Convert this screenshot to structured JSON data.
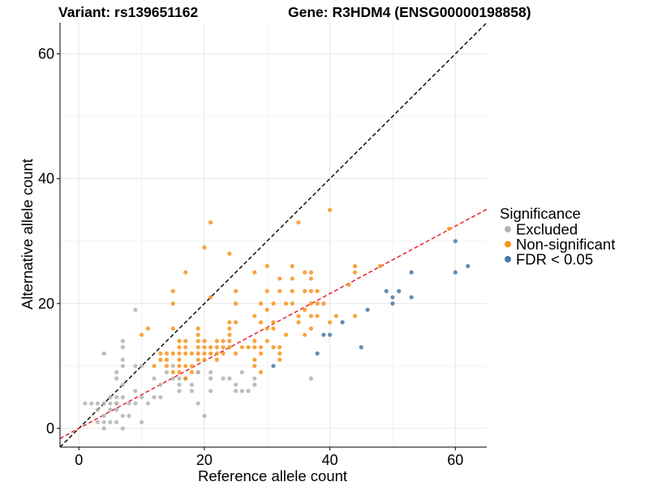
{
  "chart_data": {
    "type": "scatter",
    "title_left": "Variant: rs139651162",
    "title_right": "Gene: R3HDM4 (ENSG00000198858)",
    "xlabel": "Reference allele count",
    "ylabel": "Alternative allele count",
    "xlim": [
      -3,
      65
    ],
    "ylim": [
      -3,
      65
    ],
    "x_ticks": [
      0,
      20,
      40,
      60
    ],
    "y_ticks": [
      0,
      20,
      40,
      60
    ],
    "grid": true,
    "legend": {
      "title": "Significance",
      "position": "right",
      "entries": [
        {
          "label": "Excluded",
          "color": "#B3B3B3"
        },
        {
          "label": "Non-significant",
          "color": "#F7941D"
        },
        {
          "label": "FDR < 0.05",
          "color": "#4A78A6"
        }
      ]
    },
    "reference_lines": [
      {
        "style": "dashed",
        "color": "#000000",
        "intercept": 0,
        "slope": 1
      },
      {
        "style": "dashed",
        "color": "#E8141C",
        "intercept": 0,
        "slope": 0.54
      }
    ],
    "series": [
      {
        "name": "Excluded",
        "color": "#B3B3B3",
        "points": [
          [
            1,
            4
          ],
          [
            2,
            4
          ],
          [
            3,
            3
          ],
          [
            3,
            4
          ],
          [
            3,
            1
          ],
          [
            4,
            2
          ],
          [
            4,
            1
          ],
          [
            5,
            1
          ],
          [
            5,
            4
          ],
          [
            5,
            5
          ],
          [
            6,
            1
          ],
          [
            6,
            3
          ],
          [
            6,
            4
          ],
          [
            7,
            5
          ],
          [
            7,
            2
          ],
          [
            8,
            4
          ],
          [
            9,
            4
          ],
          [
            9,
            6
          ],
          [
            10,
            5
          ],
          [
            10,
            1
          ],
          [
            11,
            4
          ],
          [
            12,
            5
          ],
          [
            12,
            8
          ],
          [
            13,
            7
          ],
          [
            14,
            9
          ],
          [
            15,
            8
          ],
          [
            15,
            10
          ],
          [
            16,
            8
          ],
          [
            16,
            6
          ],
          [
            16,
            7
          ],
          [
            17,
            8
          ],
          [
            18,
            7
          ],
          [
            18,
            6
          ],
          [
            19,
            9
          ],
          [
            19,
            4
          ],
          [
            20,
            2
          ],
          [
            21,
            8
          ],
          [
            21,
            6
          ],
          [
            23,
            8
          ],
          [
            24,
            8
          ],
          [
            25,
            7
          ],
          [
            25,
            6
          ],
          [
            26,
            6
          ],
          [
            26,
            9
          ],
          [
            27,
            6
          ],
          [
            28,
            8
          ],
          [
            28,
            7
          ],
          [
            37,
            8
          ],
          [
            4,
            12
          ],
          [
            6,
            8
          ],
          [
            6,
            9
          ],
          [
            6,
            4
          ],
          [
            7,
            14
          ],
          [
            7,
            13
          ],
          [
            7,
            11
          ],
          [
            7,
            10
          ],
          [
            7,
            7
          ],
          [
            9,
            19
          ],
          [
            9,
            10
          ],
          [
            8,
            2
          ],
          [
            7,
            0
          ],
          [
            19,
            9
          ],
          [
            17,
            8
          ],
          [
            19,
            9
          ],
          [
            21,
            9
          ],
          [
            13,
            5
          ],
          [
            10,
            10
          ],
          [
            6,
            5
          ],
          [
            5,
            3
          ],
          [
            4,
            4
          ],
          [
            4,
            0
          ]
        ]
      },
      {
        "name": "Non-significant",
        "color": "#F7941D",
        "points": [
          [
            10,
            15
          ],
          [
            11,
            16
          ],
          [
            12,
            10
          ],
          [
            13,
            11
          ],
          [
            13,
            12
          ],
          [
            14,
            12
          ],
          [
            14,
            11
          ],
          [
            14,
            10
          ],
          [
            15,
            16
          ],
          [
            15,
            20
          ],
          [
            15,
            22
          ],
          [
            15,
            12
          ],
          [
            15,
            9
          ],
          [
            16,
            10
          ],
          [
            16,
            9
          ],
          [
            16,
            14
          ],
          [
            16,
            13
          ],
          [
            16,
            12
          ],
          [
            16,
            11
          ],
          [
            17,
            10
          ],
          [
            17,
            8
          ],
          [
            17,
            14
          ],
          [
            17,
            25
          ],
          [
            17,
            13
          ],
          [
            17,
            12
          ],
          [
            18,
            12
          ],
          [
            18,
            10
          ],
          [
            18,
            9
          ],
          [
            19,
            13
          ],
          [
            19,
            14
          ],
          [
            19,
            12
          ],
          [
            19,
            11
          ],
          [
            19,
            16
          ],
          [
            19,
            15
          ],
          [
            20,
            29
          ],
          [
            20,
            12
          ],
          [
            20,
            11
          ],
          [
            20,
            13
          ],
          [
            20,
            14
          ],
          [
            21,
            33
          ],
          [
            21,
            21
          ],
          [
            21,
            13
          ],
          [
            21,
            12
          ],
          [
            22,
            14
          ],
          [
            22,
            13
          ],
          [
            22,
            11
          ],
          [
            22,
            12
          ],
          [
            23,
            14
          ],
          [
            23,
            13
          ],
          [
            23,
            12
          ],
          [
            24,
            28
          ],
          [
            24,
            17
          ],
          [
            24,
            16
          ],
          [
            24,
            15
          ],
          [
            24,
            14
          ],
          [
            24,
            13
          ],
          [
            25,
            17
          ],
          [
            25,
            12
          ],
          [
            25,
            22
          ],
          [
            25,
            20
          ],
          [
            26,
            13
          ],
          [
            27,
            13
          ],
          [
            28,
            11
          ],
          [
            28,
            10
          ],
          [
            28,
            25
          ],
          [
            28,
            18
          ],
          [
            28,
            14
          ],
          [
            28,
            13
          ],
          [
            29,
            20
          ],
          [
            29,
            17
          ],
          [
            29,
            9
          ],
          [
            29,
            13
          ],
          [
            29,
            12
          ],
          [
            30,
            26
          ],
          [
            30,
            22
          ],
          [
            30,
            19
          ],
          [
            30,
            16
          ],
          [
            30,
            14
          ],
          [
            31,
            20
          ],
          [
            31,
            17
          ],
          [
            31,
            13
          ],
          [
            31,
            16
          ],
          [
            32,
            24
          ],
          [
            32,
            22
          ],
          [
            32,
            13
          ],
          [
            32,
            11
          ],
          [
            32,
            12
          ],
          [
            33,
            15
          ],
          [
            33,
            20
          ],
          [
            34,
            26
          ],
          [
            34,
            24
          ],
          [
            34,
            22
          ],
          [
            34,
            20
          ],
          [
            35,
            33
          ],
          [
            35,
            18
          ],
          [
            35,
            17
          ],
          [
            36,
            25
          ],
          [
            36,
            22
          ],
          [
            36,
            19
          ],
          [
            36,
            15
          ],
          [
            37,
            25
          ],
          [
            37,
            24
          ],
          [
            37,
            22
          ],
          [
            37,
            20
          ],
          [
            37,
            18
          ],
          [
            37,
            16
          ],
          [
            38,
            22
          ],
          [
            38,
            20
          ],
          [
            38,
            18
          ],
          [
            39,
            20
          ],
          [
            40,
            35
          ],
          [
            40,
            17
          ],
          [
            41,
            18
          ],
          [
            43,
            23
          ],
          [
            44,
            26
          ],
          [
            44,
            25
          ],
          [
            44,
            18
          ],
          [
            48,
            26
          ],
          [
            59,
            32
          ]
        ]
      },
      {
        "name": "FDR < 0.05",
        "color": "#4A78A6",
        "points": [
          [
            31,
            10
          ],
          [
            38,
            12
          ],
          [
            39,
            15
          ],
          [
            40,
            15
          ],
          [
            42,
            17
          ],
          [
            45,
            13
          ],
          [
            46,
            19
          ],
          [
            49,
            22
          ],
          [
            50,
            20
          ],
          [
            50,
            21
          ],
          [
            51,
            22
          ],
          [
            53,
            25
          ],
          [
            53,
            21
          ],
          [
            60,
            30
          ],
          [
            60,
            25
          ],
          [
            62,
            26
          ]
        ]
      }
    ]
  }
}
